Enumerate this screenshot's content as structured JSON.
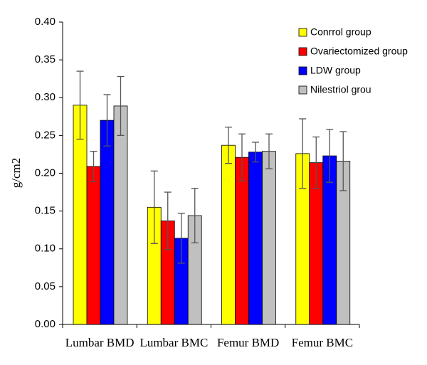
{
  "chart_data": {
    "type": "bar",
    "title": "",
    "xlabel": "",
    "ylabel": "g/cm2",
    "ylim": [
      0,
      0.4
    ],
    "yticks": [
      "0.00",
      "0.05",
      "0.10",
      "0.15",
      "0.20",
      "0.25",
      "0.30",
      "0.35",
      "0.40"
    ],
    "categories": [
      "Lumbar BMD",
      "Lumbar BMC",
      "Femur BMD",
      "Femur BMC"
    ],
    "grid": false,
    "legend": "top-right",
    "series": [
      {
        "name": "Conrrol group",
        "color": "#ffff00",
        "values": [
          0.29,
          0.155,
          0.237,
          0.226
        ],
        "errors": [
          0.045,
          0.048,
          0.024,
          0.046
        ]
      },
      {
        "name": "Ovariectomized group",
        "color": "#ff0000",
        "values": [
          0.209,
          0.137,
          0.221,
          0.214
        ],
        "errors": [
          0.02,
          0.038,
          0.031,
          0.034
        ]
      },
      {
        "name": "LDW group",
        "color": "#0000ff",
        "values": [
          0.27,
          0.114,
          0.228,
          0.223
        ],
        "errors": [
          0.034,
          0.033,
          0.013,
          0.035
        ]
      },
      {
        "name": "Nilestriol grou",
        "color": "#c0c0c0",
        "values": [
          0.289,
          0.144,
          0.229,
          0.216
        ],
        "errors": [
          0.039,
          0.036,
          0.023,
          0.039
        ]
      }
    ]
  }
}
